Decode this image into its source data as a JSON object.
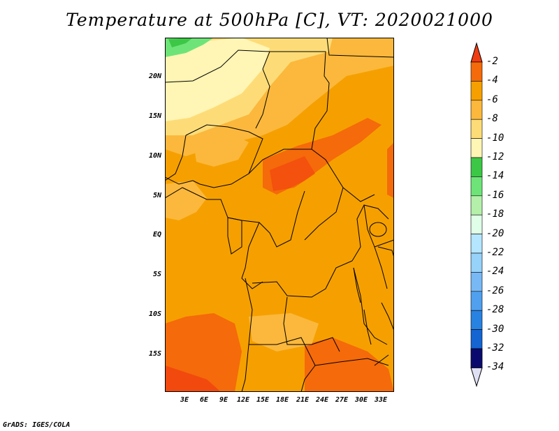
{
  "title": "Temperature at 500hPa [C], VT: 2020021000",
  "credit": "GrADS: IGES/COLA",
  "lat_labels": [
    "20N",
    "15N",
    "10N",
    "5N",
    "EQ",
    "5S",
    "10S",
    "15S"
  ],
  "lon_labels": [
    "3E",
    "6E",
    "9E",
    "12E",
    "15E",
    "18E",
    "21E",
    "24E",
    "27E",
    "30E",
    "33E"
  ],
  "colorbar": {
    "labels": [
      "-2",
      "-4",
      "-6",
      "-8",
      "-10",
      "-12",
      "-14",
      "-16",
      "-18",
      "-20",
      "-22",
      "-24",
      "-26",
      "-28",
      "-30",
      "-32",
      "-34"
    ],
    "colors": [
      "#f03c10",
      "#f56a0a",
      "#f5a000",
      "#fbb83c",
      "#fddc78",
      "#fff5b4",
      "#3cc846",
      "#6ee478",
      "#b4f0aa",
      "#e0ffe8",
      "#b4e6ff",
      "#96d2fa",
      "#78b9f5",
      "#50a0ef",
      "#2882e1",
      "#1464d2",
      "#1450b4"
    ],
    "top_arrow_color": "#f03c10",
    "bottom_arrow_color": "#e0e0f5",
    "bottom_cap_color": "#0a0a6e"
  }
}
